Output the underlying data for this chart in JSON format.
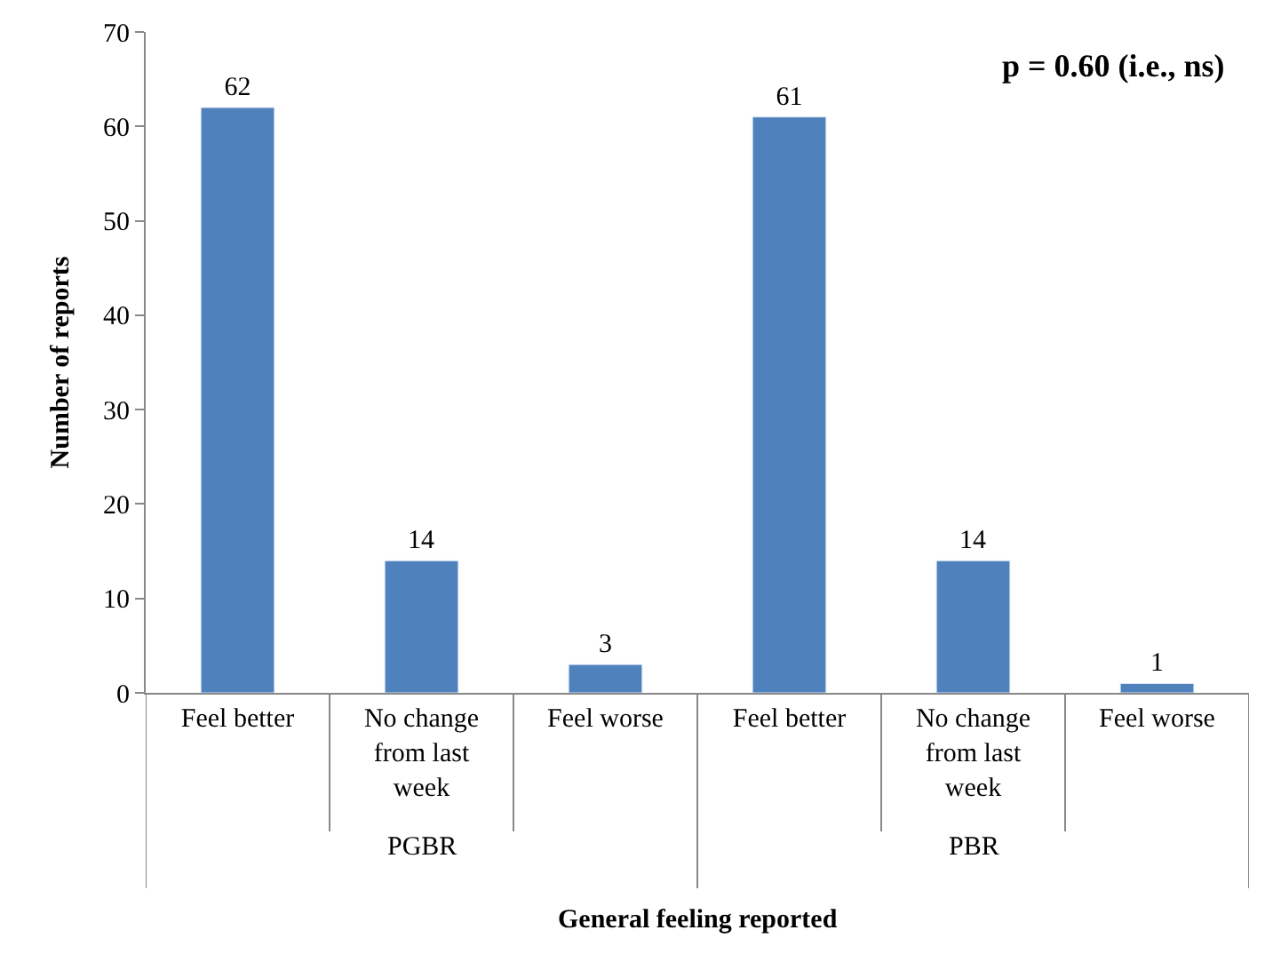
{
  "chart_data": {
    "type": "bar",
    "xlabel": "General feeling reported",
    "ylabel": "Number of reports",
    "categories": [
      "Feel better",
      "No change from last week",
      "Feel worse",
      "Feel better",
      "No change from last week",
      "Feel worse"
    ],
    "values": [
      62,
      14,
      3,
      61,
      14,
      1
    ],
    "color": "#4f81bd",
    "ylim": [
      0,
      70
    ],
    "yticks": [
      0,
      10,
      20,
      30,
      40,
      50,
      60,
      70
    ],
    "data_labels": true,
    "annotations": [
      "p = 0.60 (i.e., ns)",
      "PGBR",
      "PBR"
    ]
  }
}
